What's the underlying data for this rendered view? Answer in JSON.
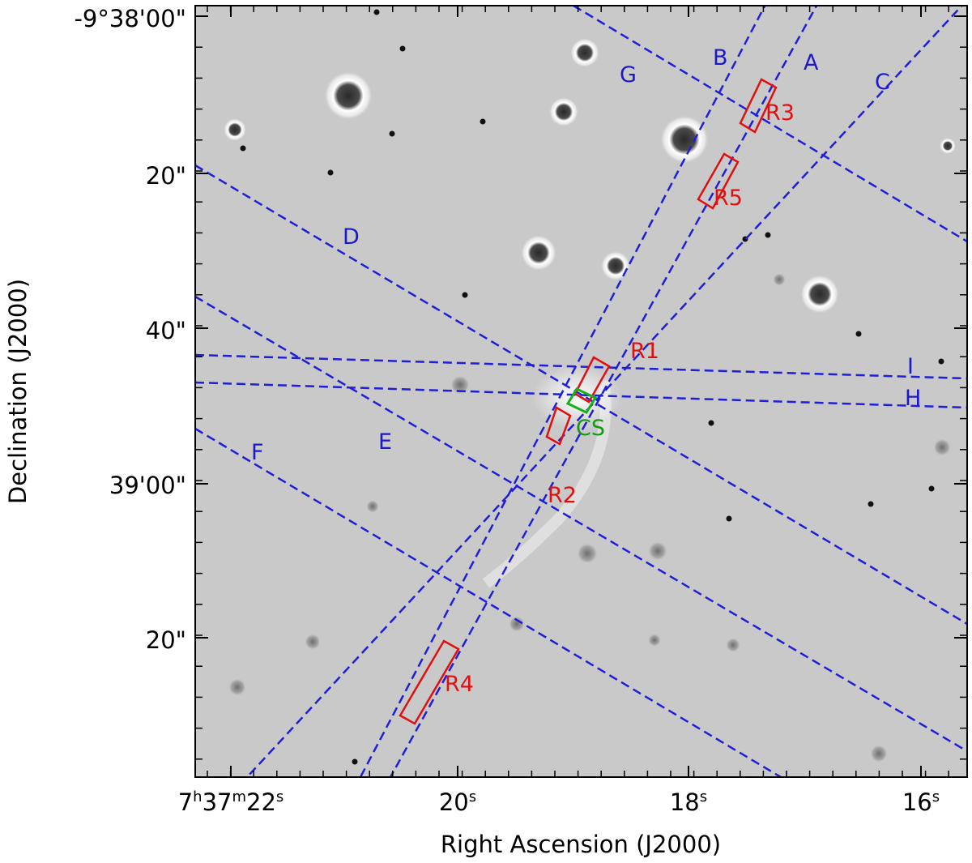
{
  "chart_data": {
    "type": "image",
    "title": "",
    "xlabel": "Right Ascension (J2000)",
    "ylabel": "Declination (J2000)",
    "colors": {
      "slits": "#1f1fd6",
      "regions": "#e01010",
      "central_source": "#17b017",
      "background": "#c9c9c9"
    },
    "x_ticks": [
      {
        "main": "7",
        "s1": "h",
        "mid": "37",
        "s2": "m",
        "tail": "22",
        "s3": "s"
      },
      {
        "main": "",
        "s1": "",
        "mid": "",
        "s2": "",
        "tail": "20",
        "s3": "s"
      },
      {
        "main": "",
        "s1": "",
        "mid": "",
        "s2": "",
        "tail": "18",
        "s3": "s"
      },
      {
        "main": "",
        "s1": "",
        "mid": "",
        "s2": "",
        "tail": "16",
        "s3": "s"
      }
    ],
    "y_ticks": [
      "-9°38'00\"",
      "20\"",
      "40\"",
      "39'00\"",
      "20\""
    ],
    "slits": [
      {
        "name": "A"
      },
      {
        "name": "B"
      },
      {
        "name": "C"
      },
      {
        "name": "D"
      },
      {
        "name": "E"
      },
      {
        "name": "F"
      },
      {
        "name": "G"
      },
      {
        "name": "H"
      },
      {
        "name": "I"
      }
    ],
    "regions": [
      {
        "name": "R1"
      },
      {
        "name": "R2"
      },
      {
        "name": "R3"
      },
      {
        "name": "R4"
      },
      {
        "name": "R5"
      }
    ],
    "central_source": {
      "name": "CS"
    }
  }
}
